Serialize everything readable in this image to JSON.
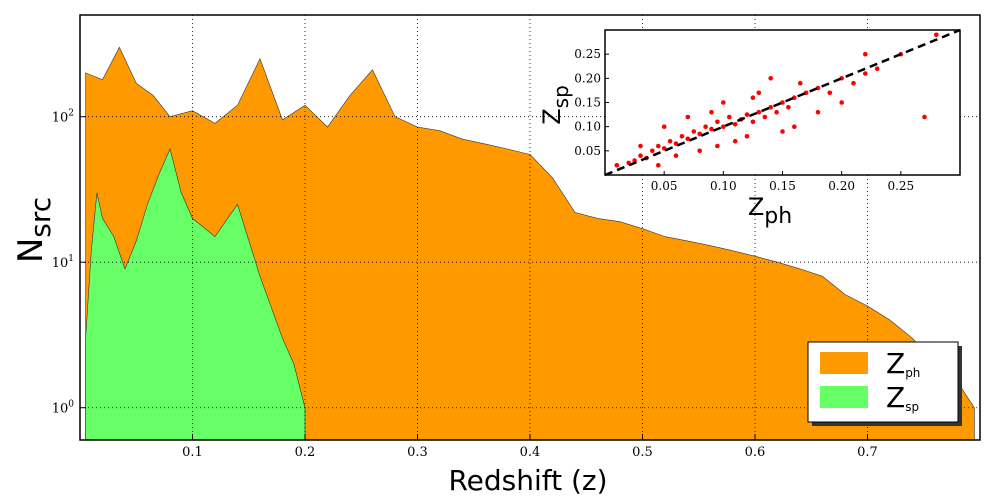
{
  "chart_data": [
    {
      "type": "area",
      "scale_y": "log",
      "xlabel": "Redshift (z)",
      "ylabel": "N",
      "ylabel_sub": "src",
      "xlim": [
        0.0,
        0.8
      ],
      "ylim": [
        0.6,
        500
      ],
      "x_ticks": [
        {
          "value": 0.1,
          "label": "0.1"
        },
        {
          "value": 0.2,
          "label": "0.2"
        },
        {
          "value": 0.3,
          "label": "0.3"
        },
        {
          "value": 0.4,
          "label": "0.4"
        },
        {
          "value": 0.5,
          "label": "0.5"
        },
        {
          "value": 0.6,
          "label": "0.6"
        },
        {
          "value": 0.7,
          "label": "0.7"
        }
      ],
      "y_ticks": [
        {
          "value": 1,
          "base": "10",
          "exp": "0"
        },
        {
          "value": 10,
          "base": "10",
          "exp": "1"
        },
        {
          "value": 100,
          "base": "10",
          "exp": "2"
        }
      ],
      "grid": true,
      "legend_position": "bottom-right",
      "series": [
        {
          "name": "Z",
          "name_sub": "ph",
          "color": "#ff9900",
          "x": [
            0.005,
            0.02,
            0.035,
            0.05,
            0.065,
            0.08,
            0.1,
            0.12,
            0.14,
            0.16,
            0.18,
            0.2,
            0.22,
            0.24,
            0.26,
            0.28,
            0.3,
            0.32,
            0.34,
            0.36,
            0.38,
            0.4,
            0.42,
            0.44,
            0.46,
            0.48,
            0.5,
            0.52,
            0.54,
            0.56,
            0.58,
            0.6,
            0.62,
            0.64,
            0.66,
            0.68,
            0.7,
            0.72,
            0.74,
            0.76,
            0.78,
            0.795
          ],
          "values": [
            200,
            180,
            300,
            170,
            140,
            100,
            110,
            90,
            120,
            250,
            95,
            120,
            85,
            140,
            210,
            100,
            85,
            80,
            70,
            65,
            60,
            55,
            38,
            22,
            20,
            19,
            17,
            15,
            14,
            13,
            12,
            11,
            10,
            9,
            8,
            6,
            5,
            4,
            3,
            2,
            1.5,
            1
          ]
        },
        {
          "name": "Z",
          "name_sub": "sp",
          "color": "#66ff66",
          "x": [
            0.005,
            0.01,
            0.015,
            0.02,
            0.03,
            0.04,
            0.05,
            0.06,
            0.07,
            0.08,
            0.09,
            0.1,
            0.12,
            0.14,
            0.16,
            0.18,
            0.19,
            0.2
          ],
          "values": [
            3,
            12,
            30,
            20,
            15,
            9,
            14,
            25,
            40,
            60,
            30,
            20,
            15,
            25,
            8,
            3,
            2,
            1
          ]
        }
      ]
    },
    {
      "type": "scatter",
      "inset": true,
      "xlabel": "Z",
      "xlabel_sub": "ph",
      "ylabel": "Z",
      "ylabel_sub": "sp",
      "xlim": [
        0.0,
        0.3
      ],
      "ylim": [
        0.0,
        0.3
      ],
      "x_ticks": [
        "0.05",
        "0.10",
        "0.15",
        "0.20",
        "0.25"
      ],
      "y_ticks": [
        "0.05",
        "0.10",
        "0.15",
        "0.20",
        "0.25"
      ],
      "points_color": "#ff0000",
      "reference_line": "y = x (dashed, black)",
      "series": [
        {
          "x": [
            0.01,
            0.02,
            0.025,
            0.03,
            0.035,
            0.04,
            0.045,
            0.05,
            0.055,
            0.06,
            0.065,
            0.07,
            0.075,
            0.08,
            0.085,
            0.09,
            0.095,
            0.1,
            0.105,
            0.11,
            0.115,
            0.12,
            0.125,
            0.13,
            0.135,
            0.14,
            0.145,
            0.15,
            0.155,
            0.16,
            0.17,
            0.18,
            0.19,
            0.2,
            0.21,
            0.22,
            0.23,
            0.25,
            0.27,
            0.28,
            0.05,
            0.08,
            0.1,
            0.12,
            0.14,
            0.06,
            0.09,
            0.11,
            0.13,
            0.16,
            0.03,
            0.07,
            0.15,
            0.18,
            0.2,
            0.045,
            0.095,
            0.125,
            0.165,
            0.22
          ],
          "y": [
            0.02,
            0.025,
            0.03,
            0.04,
            0.035,
            0.05,
            0.06,
            0.055,
            0.07,
            0.065,
            0.08,
            0.075,
            0.09,
            0.085,
            0.1,
            0.095,
            0.11,
            0.1,
            0.12,
            0.105,
            0.115,
            0.125,
            0.11,
            0.13,
            0.12,
            0.14,
            0.13,
            0.15,
            0.14,
            0.16,
            0.17,
            0.18,
            0.17,
            0.2,
            0.19,
            0.21,
            0.22,
            0.25,
            0.12,
            0.29,
            0.1,
            0.05,
            0.15,
            0.08,
            0.2,
            0.04,
            0.13,
            0.07,
            0.17,
            0.1,
            0.06,
            0.12,
            0.09,
            0.13,
            0.15,
            0.02,
            0.06,
            0.16,
            0.19,
            0.25
          ]
        }
      ]
    }
  ]
}
